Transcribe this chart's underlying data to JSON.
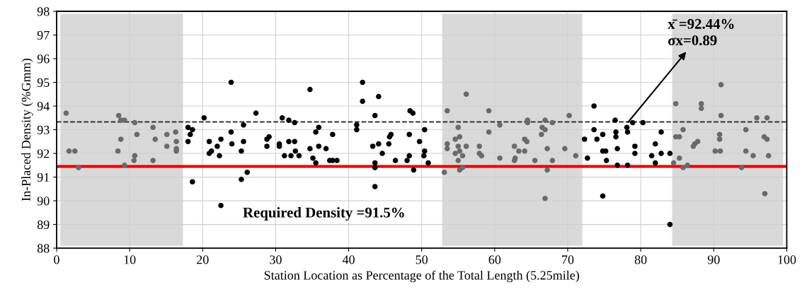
{
  "chart_data": {
    "type": "scatter",
    "xlabel": "Station Location as Percentage of the Total Length (5.25mile)",
    "ylabel": "In-Placed Density (%Gmm)",
    "xlim": [
      0,
      100
    ],
    "xticks": [
      0,
      10,
      20,
      30,
      40,
      50,
      60,
      70,
      80,
      90,
      100
    ],
    "ylim": [
      88,
      98
    ],
    "yticks": [
      88,
      89,
      90,
      91,
      92,
      93,
      94,
      95,
      96,
      97,
      98
    ],
    "grid": true,
    "marker": "circle",
    "bands": [
      {
        "axis": "x",
        "from": 0.5,
        "to": 17.3,
        "color": "#d9d9d9"
      },
      {
        "axis": "x",
        "from": 52.8,
        "to": 72.0,
        "color": "#d9d9d9"
      },
      {
        "axis": "x",
        "from": 84.3,
        "to": 99.5,
        "color": "#d9d9d9"
      }
    ],
    "ref_lines": [
      {
        "axis": "y",
        "value": 93.33,
        "color": "#333333",
        "line_style": "dashed"
      },
      {
        "axis": "y",
        "value": 91.45,
        "color": "#e00000",
        "line_style": "solid",
        "label": "Required Density =91.5%"
      }
    ],
    "annotations": [
      {
        "text": "x̄ =92.44%\nσx=0.89",
        "x": 78.3,
        "y": 93.33
      }
    ],
    "series": [
      {
        "color": "#000000",
        "x": [
          18.0,
          18.3,
          18.6,
          18.0,
          18.6,
          20.2,
          20.9,
          20.9,
          21.2,
          22.0,
          22.5,
          22.3,
          22.5,
          23.9,
          23.9,
          24.0,
          25.3,
          25.3,
          25.6,
          25.6,
          26.1,
          27.3,
          28.8,
          29.1,
          28.8,
          30.5,
          30.5,
          30.9,
          31.2,
          31.8,
          31.8,
          32.1,
          32.6,
          32.6,
          32.7,
          33.2,
          34.7,
          34.7,
          35.1,
          35.5,
          35.5,
          35.9,
          35.9,
          36.9,
          37.4,
          37.8,
          37.8,
          38.4,
          41.1,
          41.1,
          41.9,
          41.9,
          43.6,
          43.3,
          43.6,
          43.6,
          43.6,
          44.1,
          44.1,
          44.6,
          45.5,
          45.6,
          45.8,
          46.4,
          48.0,
          48.4,
          48.8,
          48.3,
          48.3,
          48.9,
          49.7,
          50.4,
          50.4,
          50.3,
          50.9,
          72.3,
          72.7,
          73.6,
          73.6,
          74.0,
          74.8,
          74.8,
          74.8,
          75.2,
          75.3,
          76.5,
          76.6,
          76.6,
          76.8,
          76.8,
          78.1,
          78.2,
          78.2,
          78.9,
          79.2,
          79.2,
          80.3,
          81.5,
          82.0,
          82.0,
          82.8,
          82.8,
          84.0,
          84.0
        ],
        "values": [
          93.1,
          92.8,
          93.0,
          92.5,
          90.8,
          93.5,
          92.5,
          92.0,
          92.1,
          92.3,
          92.6,
          91.9,
          89.8,
          95.0,
          92.9,
          92.4,
          92.1,
          90.9,
          93.2,
          92.5,
          91.2,
          93.7,
          92.6,
          92.7,
          92.3,
          92.4,
          92.3,
          93.5,
          91.9,
          93.4,
          92.5,
          91.9,
          92.5,
          93.3,
          92.1,
          91.9,
          94.7,
          92.2,
          91.8,
          92.9,
          91.6,
          93.1,
          92.3,
          92.2,
          91.7,
          92.8,
          91.7,
          91.7,
          93.2,
          93.0,
          95.0,
          94.2,
          93.6,
          92.3,
          91.6,
          91.4,
          90.6,
          94.4,
          92.4,
          92.0,
          92.4,
          92.7,
          92.8,
          91.7,
          91.7,
          93.8,
          93.7,
          92.8,
          91.9,
          91.3,
          92.5,
          93.0,
          92.1,
          91.9,
          91.6,
          92.6,
          91.8,
          94.0,
          93.0,
          92.6,
          92.8,
          92.1,
          90.2,
          92.1,
          91.7,
          93.4,
          92.9,
          92.7,
          92.2,
          91.5,
          93.1,
          92.9,
          91.5,
          93.3,
          92.3,
          92.0,
          93.3,
          91.9,
          92.4,
          91.6,
          92.9,
          92.0,
          92.0,
          89.0
        ]
      },
      {
        "color": "#6a6a6a",
        "x": [
          1.3,
          1.7,
          2.5,
          3.0,
          8.5,
          8.4,
          8.8,
          8.8,
          9.3,
          9.3,
          10.7,
          11.0,
          10.7,
          10.6,
          13.2,
          13.5,
          13.2,
          15.1,
          15.1,
          16.3,
          16.4,
          16.4,
          16.4,
          53.1,
          53.5,
          53.5,
          53.5,
          54.6,
          54.6,
          55.0,
          55.0,
          55.2,
          55.2,
          55.0,
          55.2,
          55.6,
          55.6,
          56.1,
          56.1,
          57.9,
          57.9,
          58.2,
          59.2,
          59.2,
          60.7,
          60.7,
          62.7,
          62.8,
          62.7,
          63.3,
          64.1,
          64.1,
          64.4,
          64.5,
          64.5,
          65.5,
          66.4,
          66.5,
          66.9,
          66.9,
          66.9,
          67.2,
          67.2,
          67.9,
          67.9,
          69.6,
          70.2,
          71.1,
          84.5,
          84.8,
          84.8,
          85.3,
          85.3,
          85.8,
          85.8,
          86.4,
          87.2,
          87.4,
          87.8,
          88.3,
          88.3,
          90.2,
          90.9,
          91.0,
          91.0,
          90.8,
          90.8,
          93.8,
          94.4,
          94.4,
          95.4,
          95.9,
          97.3,
          96.9,
          97.3,
          97.0,
          97.5
        ],
        "values": [
          93.7,
          92.1,
          92.1,
          91.4,
          93.6,
          92.1,
          92.6,
          93.4,
          93.4,
          91.5,
          93.3,
          92.8,
          91.9,
          91.7,
          93.1,
          92.6,
          91.7,
          92.8,
          92.3,
          92.9,
          92.5,
          92.2,
          92.1,
          91.2,
          93.8,
          92.4,
          92.2,
          92.6,
          92.0,
          93.1,
          92.3,
          92.7,
          92.1,
          91.7,
          91.3,
          91.9,
          91.4,
          94.5,
          92.3,
          92.3,
          92.0,
          91.9,
          93.8,
          92.9,
          93.2,
          91.8,
          92.3,
          91.8,
          91.7,
          92.1,
          92.1,
          92.6,
          92.5,
          93.4,
          93.3,
          91.7,
          92.8,
          93.1,
          93.0,
          93.4,
          90.1,
          92.2,
          91.3,
          93.3,
          91.7,
          92.2,
          93.6,
          91.9,
          91.6,
          94.1,
          92.7,
          92.7,
          91.8,
          93.0,
          91.4,
          91.5,
          92.3,
          92.4,
          92.5,
          94.1,
          93.9,
          92.1,
          92.1,
          94.9,
          93.6,
          92.8,
          92.6,
          91.4,
          93.0,
          92.1,
          91.9,
          93.5,
          93.5,
          92.7,
          92.6,
          90.3,
          91.9
        ]
      }
    ]
  }
}
